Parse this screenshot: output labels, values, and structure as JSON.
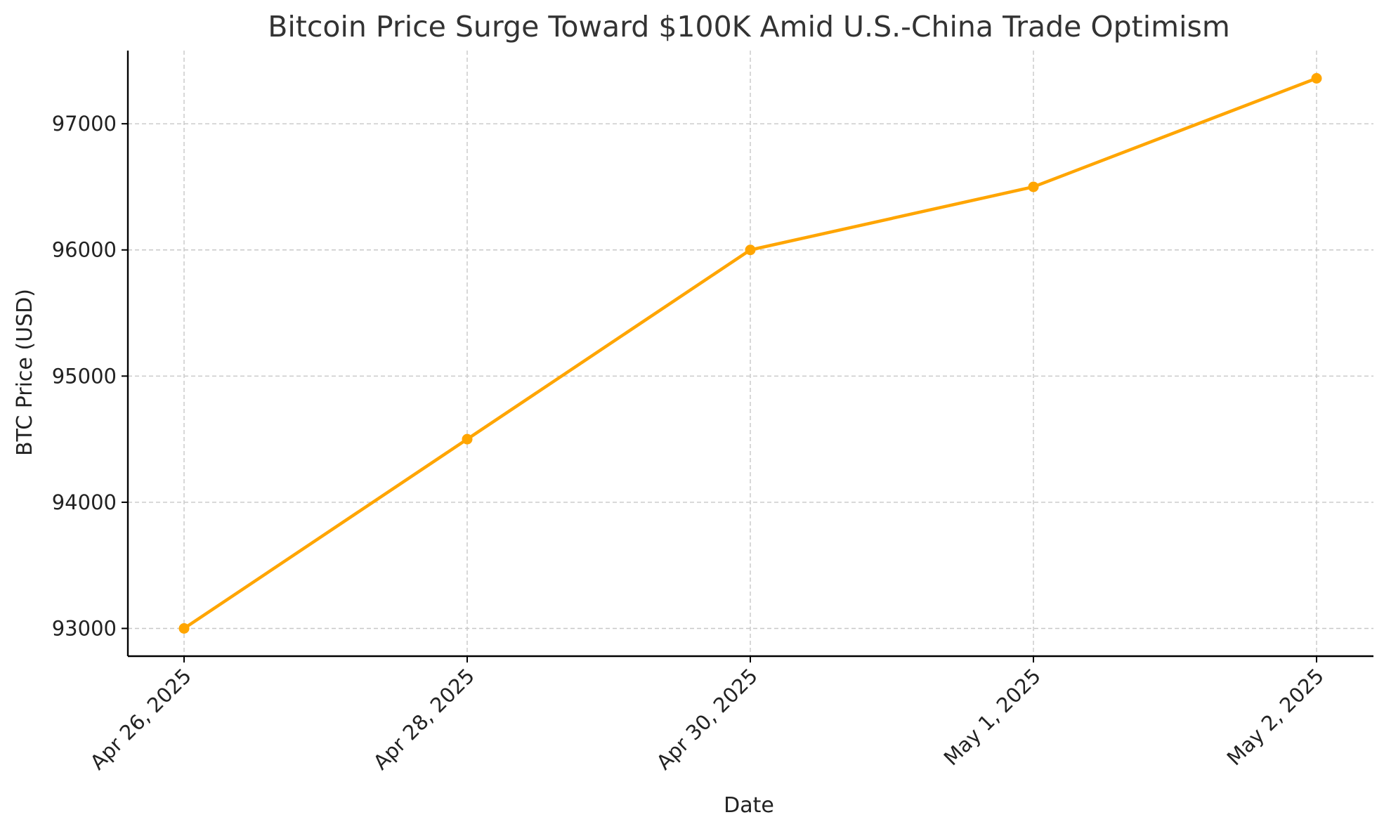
{
  "chart_data": {
    "type": "line",
    "title": "Bitcoin Price Surge Toward $100K Amid U.S.-China Trade Optimism",
    "xlabel": "Date",
    "ylabel": "BTC Price (USD)",
    "categories": [
      "Apr 26, 2025",
      "Apr 28, 2025",
      "Apr 30, 2025",
      "May 1, 2025",
      "May 2, 2025"
    ],
    "series": [
      {
        "values": [
          93000,
          94500,
          96000,
          96500,
          97360
        ],
        "color": "#ffa500"
      }
    ],
    "yticks": [
      93000,
      94000,
      95000,
      96000,
      97000
    ],
    "ylim": [
      92780,
      97580
    ],
    "grid": true,
    "legend": false
  }
}
